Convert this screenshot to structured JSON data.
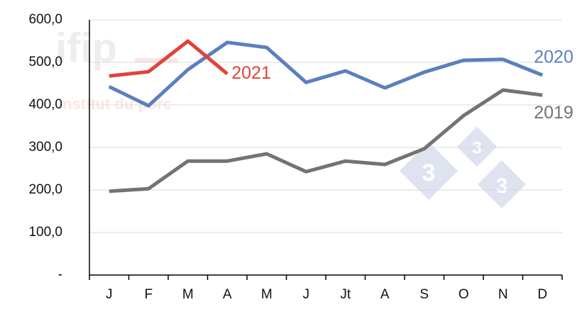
{
  "chart_data": {
    "type": "line",
    "categories": [
      "J",
      "F",
      "M",
      "A",
      "M",
      "J",
      "Jt",
      "A",
      "S",
      "O",
      "N",
      "D"
    ],
    "series": [
      {
        "name": "2019",
        "color": "#737373",
        "values": [
          197,
          203,
          268,
          268,
          285,
          243,
          268,
          260,
          297,
          375,
          435,
          423
        ]
      },
      {
        "name": "2020",
        "color": "#5b7fbe",
        "values": [
          443,
          398,
          483,
          547,
          535,
          453,
          480,
          440,
          477,
          505,
          507,
          470
        ]
      },
      {
        "name": "2021",
        "color": "#e0433a",
        "values": [
          468,
          478,
          550,
          473,
          null,
          null,
          null,
          null,
          null,
          null,
          null,
          null
        ]
      }
    ],
    "ylim": [
      0,
      600
    ],
    "yticks": [
      {
        "value": 0,
        "label": "-"
      },
      {
        "value": 100,
        "label": "100,0"
      },
      {
        "value": 200,
        "label": "200,0"
      },
      {
        "value": 300,
        "label": "300,0"
      },
      {
        "value": 400,
        "label": "400,0"
      },
      {
        "value": 500,
        "label": "500,0"
      },
      {
        "value": 600,
        "label": "600,0"
      }
    ],
    "grid": true
  },
  "watermark": {
    "brand": "ifip",
    "tagline": "Institut du porc",
    "badges": [
      "3",
      "3",
      "3"
    ]
  }
}
